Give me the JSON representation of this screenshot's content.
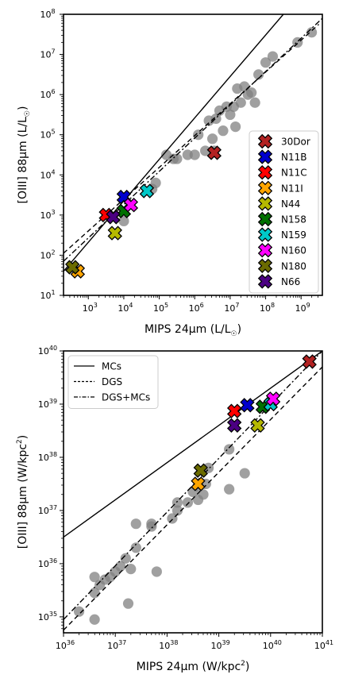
{
  "chart_data": [
    {
      "type": "scatter",
      "xlabel_main": "MIPS 24μm (L/L",
      "xlabel_sub": "☉",
      "xlabel_end": ")",
      "ylabel_main": "[OIII] 88μm (L/L",
      "ylabel_sub": "☉",
      "ylabel_end": ")",
      "xscale": "log",
      "yscale": "log",
      "xlim_log": [
        2.3,
        9.6
      ],
      "ylim_log": [
        1,
        8
      ],
      "x_ticks": [
        {
          "e": 3,
          "label": "10",
          "exp": "3"
        },
        {
          "e": 4,
          "label": "10",
          "exp": "4"
        },
        {
          "e": 5,
          "label": "10",
          "exp": "5"
        },
        {
          "e": 6,
          "label": "10",
          "exp": "6"
        },
        {
          "e": 7,
          "label": "10",
          "exp": "7"
        },
        {
          "e": 8,
          "label": "10",
          "exp": "8"
        },
        {
          "e": 9,
          "label": "10",
          "exp": "9"
        }
      ],
      "y_ticks": [
        {
          "e": 1,
          "label": "10",
          "exp": "1"
        },
        {
          "e": 2,
          "label": "10",
          "exp": "2"
        },
        {
          "e": 3,
          "label": "10",
          "exp": "3"
        },
        {
          "e": 4,
          "label": "10",
          "exp": "4"
        },
        {
          "e": 5,
          "label": "10",
          "exp": "5"
        },
        {
          "e": 6,
          "label": "10",
          "exp": "6"
        },
        {
          "e": 7,
          "label": "10",
          "exp": "7"
        },
        {
          "e": 8,
          "label": "10",
          "exp": "8"
        }
      ],
      "background_points_log": [
        [
          5.2,
          4.5
        ],
        [
          5.5,
          4.4
        ],
        [
          5.8,
          4.5
        ],
        [
          6.0,
          4.5
        ],
        [
          6.3,
          4.6
        ],
        [
          5.4,
          4.4
        ],
        [
          6.5,
          4.9
        ],
        [
          6.8,
          5.1
        ],
        [
          7.0,
          5.5
        ],
        [
          7.1,
          5.7
        ],
        [
          7.3,
          5.8
        ],
        [
          7.5,
          6.0
        ],
        [
          7.6,
          6.05
        ],
        [
          7.2,
          6.15
        ],
        [
          7.4,
          6.2
        ],
        [
          6.9,
          5.7
        ],
        [
          6.7,
          5.6
        ],
        [
          6.4,
          5.35
        ],
        [
          6.6,
          5.4
        ],
        [
          7.8,
          6.5
        ],
        [
          8.0,
          6.8
        ],
        [
          8.2,
          6.95
        ],
        [
          8.9,
          7.3
        ],
        [
          9.3,
          7.55
        ],
        [
          7.7,
          5.8
        ],
        [
          6.1,
          5.0
        ],
        [
          4.9,
          3.8
        ],
        [
          4.0,
          2.85
        ],
        [
          4.8,
          3.65
        ],
        [
          7.15,
          5.2
        ],
        [
          6.55,
          4.6
        ]
      ],
      "legend_position": "lower right",
      "series": [
        {
          "name": "30Dor",
          "color": "#b22222",
          "x_log": 6.55,
          "y_log": 4.55
        },
        {
          "name": "N11B",
          "color": "#0000cd",
          "x_log": 4.0,
          "y_log": 3.45
        },
        {
          "name": "N11C",
          "color": "#ff0000",
          "x_log": 3.5,
          "y_log": 3.0
        },
        {
          "name": "N11I",
          "color": "#ffa500",
          "x_log": 2.7,
          "y_log": 1.6
        },
        {
          "name": "N44",
          "color": "#b5b800",
          "x_log": 3.75,
          "y_log": 2.55
        },
        {
          "name": "N158",
          "color": "#007000",
          "x_log": 4.0,
          "y_log": 3.1
        },
        {
          "name": "N159",
          "color": "#00c8c8",
          "x_log": 4.65,
          "y_log": 3.6
        },
        {
          "name": "N160",
          "color": "#ff00ff",
          "x_log": 4.2,
          "y_log": 3.25
        },
        {
          "name": "N180",
          "color": "#6b6b00",
          "x_log": 2.55,
          "y_log": 1.7
        },
        {
          "name": "N66",
          "color": "#4b0082",
          "x_log": 3.7,
          "y_log": 2.95
        }
      ],
      "fit_lines_log": [
        {
          "style": "solid",
          "x1": 2.3,
          "y1": 1.6,
          "x2": 8.5,
          "y2": 8.0
        },
        {
          "style": "dashed",
          "x1": 2.3,
          "y1": 2.05,
          "x2": 9.5,
          "y2": 7.75
        },
        {
          "style": "dashdot",
          "x1": 2.3,
          "y1": 1.85,
          "x2": 9.6,
          "y2": 7.9
        }
      ]
    },
    {
      "type": "scatter",
      "xlabel_main": "MIPS 24μm (W/kpc",
      "xlabel_sup": "2",
      "xlabel_end": ")",
      "ylabel_main": "[OIII] 88μm (W/kpc",
      "ylabel_sup": "2",
      "ylabel_end": ")",
      "xscale": "log",
      "yscale": "log",
      "xlim_log": [
        36,
        41
      ],
      "ylim_log": [
        34.7,
        40
      ],
      "x_ticks": [
        {
          "e": 36,
          "label": "10",
          "exp": "36"
        },
        {
          "e": 37,
          "label": "10",
          "exp": "37"
        },
        {
          "e": 38,
          "label": "10",
          "exp": "38"
        },
        {
          "e": 39,
          "label": "10",
          "exp": "39"
        },
        {
          "e": 40,
          "label": "10",
          "exp": "40"
        },
        {
          "e": 41,
          "label": "10",
          "exp": "41"
        }
      ],
      "y_ticks": [
        {
          "e": 35,
          "label": "10",
          "exp": "35"
        },
        {
          "e": 36,
          "label": "10",
          "exp": "36"
        },
        {
          "e": 37,
          "label": "10",
          "exp": "37"
        },
        {
          "e": 38,
          "label": "10",
          "exp": "38"
        },
        {
          "e": 39,
          "label": "10",
          "exp": "39"
        },
        {
          "e": 40,
          "label": "10",
          "exp": "40"
        }
      ],
      "background_points_log": [
        [
          36.3,
          35.1
        ],
        [
          36.6,
          34.95
        ],
        [
          36.6,
          35.45
        ],
        [
          36.7,
          35.6
        ],
        [
          36.8,
          35.7
        ],
        [
          36.9,
          35.75
        ],
        [
          37.0,
          35.85
        ],
        [
          37.1,
          35.95
        ],
        [
          37.2,
          36.1
        ],
        [
          37.3,
          35.9
        ],
        [
          37.4,
          36.3
        ],
        [
          37.4,
          36.75
        ],
        [
          37.7,
          36.7
        ],
        [
          37.7,
          36.75
        ],
        [
          37.8,
          35.85
        ],
        [
          37.25,
          35.25
        ],
        [
          36.6,
          35.75
        ],
        [
          38.1,
          36.85
        ],
        [
          38.2,
          37.0
        ],
        [
          38.2,
          37.15
        ],
        [
          38.4,
          37.15
        ],
        [
          38.5,
          37.35
        ],
        [
          38.6,
          37.2
        ],
        [
          38.6,
          37.45
        ],
        [
          38.7,
          37.3
        ],
        [
          38.75,
          37.5
        ],
        [
          38.8,
          37.8
        ],
        [
          39.2,
          38.15
        ],
        [
          39.2,
          37.4
        ],
        [
          39.5,
          37.7
        ]
      ],
      "legend_position": "upper left",
      "legend_lines": [
        {
          "label": "MCs",
          "style": "solid"
        },
        {
          "label": "DGS",
          "style": "dashed"
        },
        {
          "label": "DGS+MCs",
          "style": "dashdot"
        }
      ],
      "series": [
        {
          "name": "30Dor",
          "color": "#b22222",
          "x_log": 40.75,
          "y_log": 39.8
        },
        {
          "name": "N11B",
          "color": "#0000cd",
          "x_log": 39.55,
          "y_log": 38.98
        },
        {
          "name": "N11C",
          "color": "#ff0000",
          "x_log": 39.3,
          "y_log": 38.87
        },
        {
          "name": "N11I",
          "color": "#ffa500",
          "x_log": 38.6,
          "y_log": 37.5
        },
        {
          "name": "N44",
          "color": "#b5b800",
          "x_log": 39.75,
          "y_log": 38.6
        },
        {
          "name": "N158",
          "color": "#007000",
          "x_log": 39.85,
          "y_log": 38.95
        },
        {
          "name": "N159",
          "color": "#00c8c8",
          "x_log": 40.0,
          "y_log": 39.0
        },
        {
          "name": "N160",
          "color": "#ff00ff",
          "x_log": 40.05,
          "y_log": 39.1
        },
        {
          "name": "N180",
          "color": "#6b6b00",
          "x_log": 38.65,
          "y_log": 37.75
        },
        {
          "name": "N66",
          "color": "#4b0082",
          "x_log": 39.3,
          "y_log": 38.6
        }
      ],
      "fit_lines_log": [
        {
          "style": "solid",
          "x1": 36,
          "y1": 36.5,
          "x2": 41,
          "y2": 40
        },
        {
          "style": "dashed",
          "x1": 36,
          "y1": 34.75,
          "x2": 41,
          "y2": 39.7
        },
        {
          "style": "dashdot",
          "x1": 36,
          "y1": 34.95,
          "x2": 41,
          "y2": 40.0
        }
      ]
    }
  ]
}
